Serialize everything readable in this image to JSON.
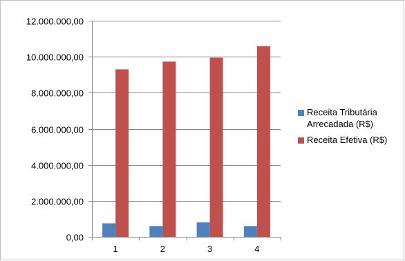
{
  "chart_data": {
    "type": "bar",
    "categories": [
      "1",
      "2",
      "3",
      "4"
    ],
    "series": [
      {
        "name": "Receita Tributária Arrecadada (R$)",
        "color": "#4f81bd",
        "values": [
          750000,
          600000,
          800000,
          600000
        ]
      },
      {
        "name": "Receita Efetiva (R$)",
        "color": "#c0504d",
        "values": [
          9300000,
          9730000,
          9950000,
          10580000
        ]
      }
    ],
    "ylim": [
      0,
      12000000
    ],
    "yticks": [
      {
        "value": 0,
        "label": "0,00"
      },
      {
        "value": 2000000,
        "label": "2.000.000,00"
      },
      {
        "value": 4000000,
        "label": "4.000.000,00"
      },
      {
        "value": 6000000,
        "label": "6.000.000,00"
      },
      {
        "value": 8000000,
        "label": "8.000.000,00"
      },
      {
        "value": 10000000,
        "label": "10.000.000,00"
      },
      {
        "value": 12000000,
        "label": "12.000.000,00"
      }
    ],
    "grid": true,
    "legend_position": "right",
    "title": "",
    "xlabel": "",
    "ylabel": ""
  }
}
